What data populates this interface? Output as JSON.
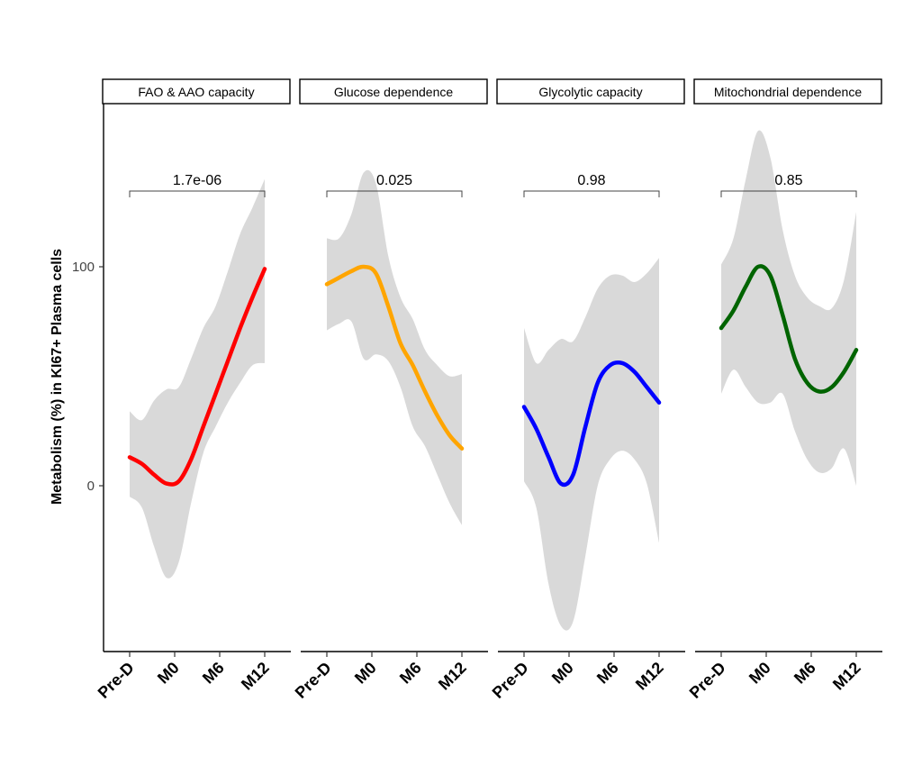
{
  "chart_data": {
    "type": "line",
    "ylabel": "Metabolism (%) in KI67+ Plasma cells",
    "categories": [
      "Pre-D",
      "M0",
      "M6",
      "M12"
    ],
    "ylim": [
      -75,
      170
    ],
    "yticks": [
      0,
      100
    ],
    "grid": false,
    "legend": "none",
    "panels": [
      {
        "title": "FAO & AAO capacity",
        "pvalue": "1.7e-06",
        "color": "#ff0000",
        "values": [
          13,
          1,
          42,
          99
        ],
        "curve": [
          13,
          10,
          5,
          1,
          2,
          12,
          27,
          42,
          57,
          72,
          86,
          99
        ],
        "upper": [
          34,
          30,
          39,
          44,
          45,
          58,
          72,
          82,
          98,
          115,
          127,
          140
        ],
        "lower": [
          -5,
          -10,
          -28,
          -42,
          -35,
          -8,
          15,
          27,
          38,
          47,
          55,
          56
        ]
      },
      {
        "title": "Glucose dependence",
        "pvalue": "0.025",
        "color": "#ffa500",
        "values": [
          92,
          100,
          55,
          17
        ],
        "curve": [
          92,
          95,
          98,
          100,
          97,
          82,
          65,
          55,
          43,
          32,
          23,
          17
        ],
        "upper": [
          113,
          113,
          124,
          143,
          138,
          105,
          86,
          76,
          62,
          55,
          50,
          51
        ],
        "lower": [
          71,
          74,
          75,
          58,
          60,
          57,
          45,
          27,
          18,
          5,
          -8,
          -18
        ]
      },
      {
        "title": "Glycolytic capacity",
        "pvalue": "0.98",
        "color": "#0000ff",
        "values": [
          36,
          1,
          55,
          38
        ],
        "curve": [
          36,
          26,
          13,
          1,
          5,
          27,
          47,
          55,
          56,
          52,
          45,
          38
        ],
        "upper": [
          72,
          56,
          62,
          67,
          66,
          77,
          90,
          96,
          96,
          93,
          97,
          104
        ],
        "lower": [
          2,
          -10,
          -45,
          -64,
          -62,
          -32,
          0,
          12,
          16,
          12,
          1,
          -26
        ]
      },
      {
        "title": "Mitochondrial dependence",
        "pvalue": "0.85",
        "color": "#006400",
        "values": [
          72,
          100,
          49,
          62
        ],
        "curve": [
          72,
          80,
          91,
          100,
          96,
          78,
          58,
          47,
          43,
          45,
          52,
          62
        ],
        "upper": [
          101,
          113,
          140,
          162,
          150,
          117,
          96,
          86,
          82,
          81,
          94,
          125
        ],
        "lower": [
          42,
          53,
          45,
          38,
          38,
          42,
          25,
          12,
          6,
          8,
          17,
          0
        ]
      }
    ]
  }
}
